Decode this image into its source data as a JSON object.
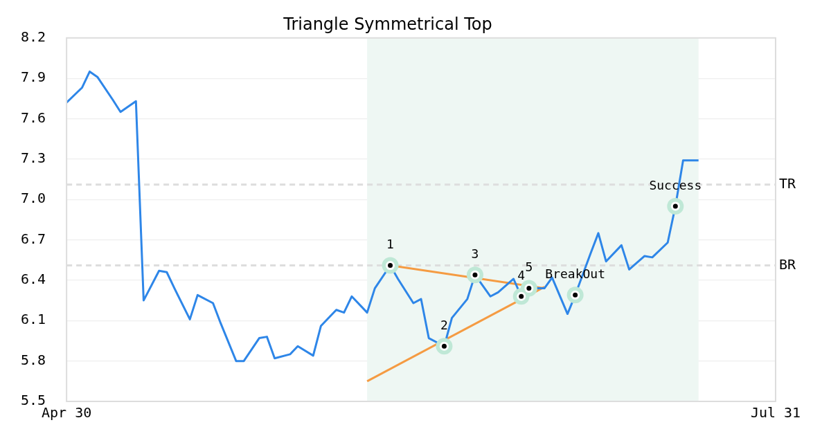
{
  "chart_data": {
    "type": "line",
    "title": "Triangle Symmetrical Top",
    "x": [
      "--04-30",
      "--05-02",
      "--05-03",
      "--05-04",
      "--05-06",
      "--05-07",
      "--05-09",
      "--05-10",
      "--05-12",
      "--05-13",
      "--05-14",
      "--05-16",
      "--05-17",
      "--05-19",
      "--05-20",
      "--05-22",
      "--05-23",
      "--05-25",
      "--05-26",
      "--05-27",
      "--05-29",
      "--05-30",
      "--06-01",
      "--06-02",
      "--06-04",
      "--06-05",
      "--06-06",
      "--06-08",
      "--06-09",
      "--06-11",
      "--06-12",
      "--06-14",
      "--06-15",
      "--06-16",
      "--06-18",
      "--06-19",
      "--06-21",
      "--06-22",
      "--06-24",
      "--06-25",
      "--06-27",
      "--06-28",
      "--06-29",
      "--07-01",
      "--07-02",
      "--07-04",
      "--07-05",
      "--07-07",
      "--07-08",
      "--07-09",
      "--07-11",
      "--07-12",
      "--07-14",
      "--07-15",
      "--07-17",
      "--07-18",
      "--07-19",
      "--07-21"
    ],
    "series": [
      {
        "color": "#2e86e8",
        "values": [
          7.72,
          7.83,
          7.95,
          7.91,
          7.74,
          7.65,
          7.73,
          6.25,
          6.47,
          6.46,
          6.34,
          6.11,
          6.29,
          6.23,
          6.08,
          5.8,
          5.8,
          5.97,
          5.98,
          5.82,
          5.85,
          5.91,
          5.84,
          6.06,
          6.18,
          6.16,
          6.28,
          6.16,
          6.34,
          6.51,
          6.41,
          6.23,
          6.26,
          5.97,
          5.91,
          6.12,
          6.26,
          6.44,
          6.28,
          6.31,
          6.41,
          6.28,
          6.34,
          6.34,
          6.42,
          6.15,
          6.29,
          6.6,
          6.75,
          6.54,
          6.66,
          6.48,
          6.58,
          6.57,
          6.68,
          6.95,
          7.29,
          7.29
        ]
      },
      {
        "color": "#f59b42",
        "x": [
          "--06-11",
          "--07-01"
        ],
        "values": [
          6.51,
          6.34
        ]
      },
      {
        "color": "#f59b42",
        "x": [
          "--06-08",
          "--07-01"
        ],
        "values": [
          5.65,
          6.35
        ]
      },
      {
        "type": "scatter",
        "color": "#bfe8d6",
        "marker": "circle",
        "x": [
          "--06-11",
          "--06-18",
          "--06-22",
          "--06-28",
          "--06-29",
          "--07-05",
          "--07-18"
        ],
        "values": [
          6.51,
          5.91,
          6.44,
          6.28,
          6.34,
          6.29,
          6.95
        ]
      }
    ],
    "xlim": [
      "--04-30",
      "--07-31"
    ],
    "xticks": [
      {
        "value": "--04-30",
        "label": "Apr 30"
      },
      {
        "value": "--07-31",
        "label": "Jul 31"
      }
    ],
    "ylim": [
      5.5,
      8.2
    ],
    "yticks": [
      5.5,
      5.8,
      6.1,
      6.4,
      6.7,
      {
        "value": 7,
        "label": "7.0"
      },
      7.3,
      7.6,
      7.9,
      8.2
    ],
    "grid": "y",
    "legend": false,
    "bands": [
      {
        "axis": "x",
        "from": "--06-08",
        "to": "--07-21",
        "color": "#eef7f3"
      }
    ],
    "ref_lines": [
      {
        "axis": "y",
        "value": 7.11,
        "label": "TR",
        "color": "#dddddd",
        "line_style": "dashed"
      },
      {
        "axis": "y",
        "value": 6.51,
        "label": "BR",
        "color": "#dddddd",
        "line_style": "dashed"
      }
    ],
    "annotations": [
      {
        "text": "1",
        "x": "--06-11",
        "y": 6.51
      },
      {
        "text": "2",
        "x": "--06-18",
        "y": 5.91
      },
      {
        "text": "3",
        "x": "--06-22",
        "y": 6.44
      },
      {
        "text": "4",
        "x": "--06-28",
        "y": 6.28
      },
      {
        "text": "5",
        "x": "--06-29",
        "y": 6.34
      },
      {
        "text": "BreakOut",
        "x": "--07-05",
        "y": 6.29
      },
      {
        "text": "Success",
        "x": "--07-18",
        "y": 6.95
      }
    ]
  }
}
